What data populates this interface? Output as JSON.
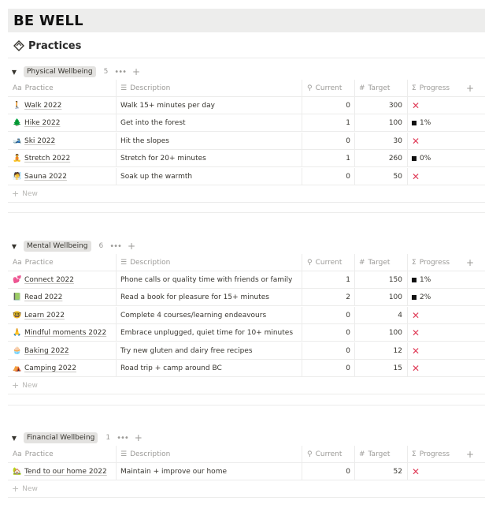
{
  "page": {
    "title": "BE WELL"
  },
  "database": {
    "title": "Practices",
    "icon": "stack-icon"
  },
  "columns": {
    "practice": "Practice",
    "description": "Description",
    "current": "Current",
    "target": "Target",
    "progress": "Progress",
    "add": "+"
  },
  "new_label": "New",
  "groups": [
    {
      "name": "Physical Wellbeing",
      "count": "5",
      "rows": [
        {
          "emoji": "🚶",
          "name": "Walk 2022",
          "description": "Walk 15+ minutes per day",
          "current": "0",
          "target": "300",
          "progress": ""
        },
        {
          "emoji": "🌲",
          "name": "Hike 2022",
          "description": "Get into the forest",
          "current": "1",
          "target": "100",
          "progress": "1%"
        },
        {
          "emoji": "🎿",
          "name": "Ski 2022",
          "description": "Hit the slopes",
          "current": "0",
          "target": "30",
          "progress": ""
        },
        {
          "emoji": "🧘",
          "name": "Stretch 2022",
          "description": "Stretch for 20+ minutes",
          "current": "1",
          "target": "260",
          "progress": "0%"
        },
        {
          "emoji": "🧖",
          "name": "Sauna 2022",
          "description": "Soak up the warmth",
          "current": "0",
          "target": "50",
          "progress": ""
        }
      ]
    },
    {
      "name": "Mental Wellbeing",
      "count": "6",
      "rows": [
        {
          "emoji": "💕",
          "name": "Connect 2022",
          "description": "Phone calls or quality time with friends or family",
          "current": "1",
          "target": "150",
          "progress": "1%"
        },
        {
          "emoji": "📗",
          "name": "Read 2022",
          "description": "Read a book for pleasure for 15+ minutes",
          "current": "2",
          "target": "100",
          "progress": "2%"
        },
        {
          "emoji": "🤓",
          "name": "Learn 2022",
          "description": "Complete 4 courses/learning endeavours",
          "current": "0",
          "target": "4",
          "progress": ""
        },
        {
          "emoji": "🙏",
          "name": "Mindful moments 2022",
          "description": "Embrace unplugged, quiet time for 10+ minutes",
          "current": "0",
          "target": "100",
          "progress": ""
        },
        {
          "emoji": "🧁",
          "name": "Baking 2022",
          "description": "Try new gluten and dairy free recipes",
          "current": "0",
          "target": "12",
          "progress": ""
        },
        {
          "emoji": "⛺",
          "name": "Camping 2022",
          "description": "Road trip + camp around BC",
          "current": "0",
          "target": "15",
          "progress": ""
        }
      ]
    },
    {
      "name": "Financial Wellbeing",
      "count": "1",
      "rows": [
        {
          "emoji": "🏡",
          "name": "Tend to our home 2022",
          "description": "Maintain + improve our home",
          "current": "0",
          "target": "52",
          "progress": ""
        }
      ]
    }
  ]
}
